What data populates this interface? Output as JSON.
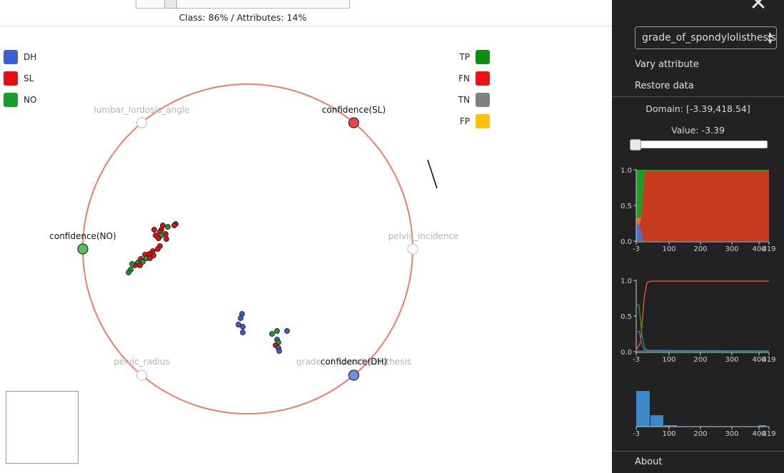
{
  "weights": {
    "text": "Class: 86% / Attributes: 14%",
    "class_fraction": 0.86
  },
  "legend_classes": [
    {
      "label": "DH",
      "color": "#3b5fcf"
    },
    {
      "label": "SL",
      "color": "#e01010"
    },
    {
      "label": "NO",
      "color": "#1a9e2a"
    }
  ],
  "legend_outcomes": [
    {
      "label": "TP",
      "color": "#138a13"
    },
    {
      "label": "FN",
      "color": "#ee1111"
    },
    {
      "label": "TN",
      "color": "#808080"
    },
    {
      "label": "FP",
      "color": "#ffc107"
    }
  ],
  "anchors": [
    {
      "label": "lumbar_lordosis_angle",
      "angle_deg": 130,
      "active": false
    },
    {
      "label": "confidence(SL)",
      "angle_deg": 50,
      "active": true,
      "color": "#ef4444"
    },
    {
      "label": "confidence(NO)",
      "angle_deg": 180,
      "active": true,
      "color": "#4fc35a"
    },
    {
      "label": "pelvic_incidence",
      "angle_deg": 0,
      "active": false
    },
    {
      "label": "pelvic_radius",
      "angle_deg": 230,
      "active": false
    },
    {
      "label": "grade_of_spondylolisthesis",
      "angle_deg": 310,
      "active": false
    },
    {
      "label": "confidence(DH)",
      "angle_deg": 310,
      "active": true,
      "color": "#6f8fe8"
    }
  ],
  "sidebar": {
    "selected_attribute": "grade_of_spondylolisthesis",
    "vary_attribute": "Vary attribute",
    "restore_data": "Restore data",
    "domain": "Domain: [-3.39,418.54]",
    "value": "Value: -3.39",
    "value_fraction": 0.0,
    "about": "About"
  },
  "charts": {
    "y_ticks": [
      "0.0",
      "0.5",
      "1.0"
    ],
    "x_ticks": [
      "-3",
      "100",
      "200",
      "300",
      "400",
      "419"
    ]
  }
}
